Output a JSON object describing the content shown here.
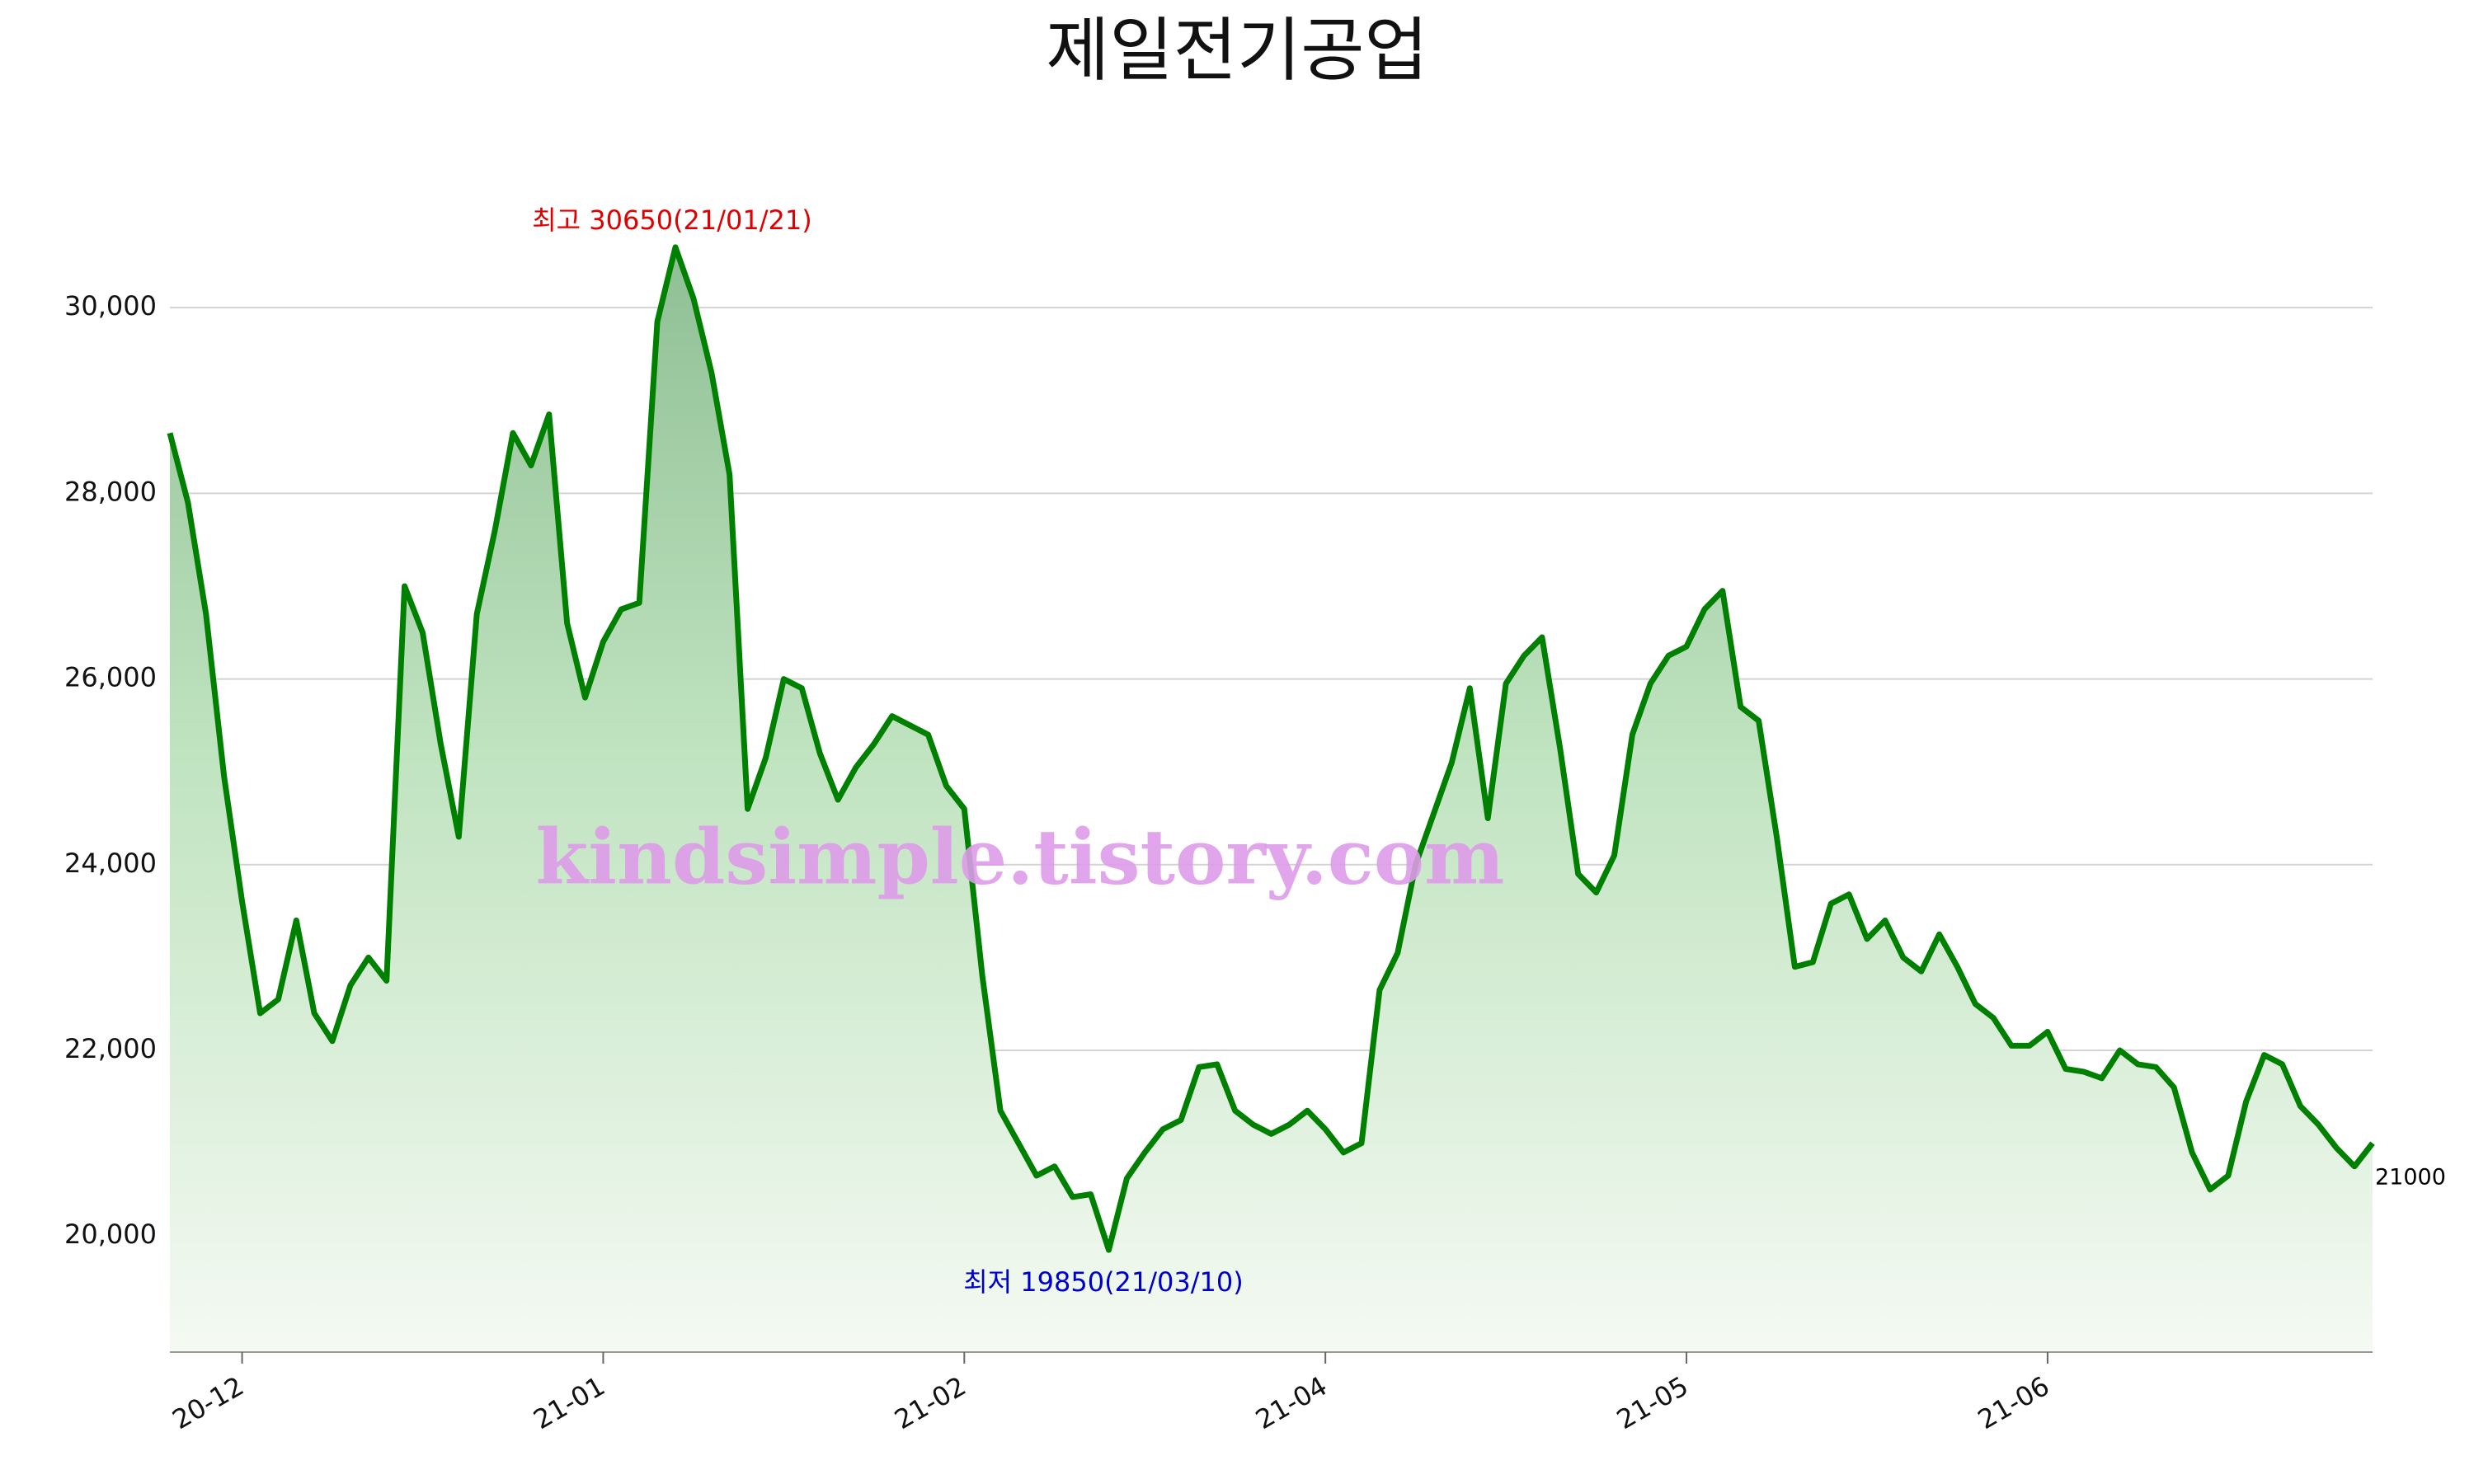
{
  "chart_data": {
    "type": "area-line",
    "title": "제일전기공업",
    "watermark": "kindsimple.tistory.com",
    "annotations": [
      {
        "text": "최고 30650(21/01/21)",
        "color": "#e00000"
      },
      {
        "text": "최저 19850(21/03/10)",
        "color": "#0000cc"
      },
      {
        "text": "21000",
        "color": "#000000"
      }
    ],
    "color": "#008000",
    "grid": true,
    "categories": [
      null,
      null,
      null,
      null,
      "20-12",
      null,
      null,
      null,
      null,
      null,
      null,
      null,
      null,
      null,
      null,
      null,
      null,
      null,
      null,
      null,
      null,
      null,
      null,
      null,
      "21-01",
      null,
      null,
      null,
      null,
      null,
      null,
      null,
      null,
      null,
      null,
      null,
      null,
      null,
      null,
      null,
      null,
      null,
      null,
      null,
      "21-02",
      null,
      null,
      null,
      null,
      null,
      null,
      null,
      null,
      null,
      null,
      null,
      null,
      null,
      null,
      null,
      null,
      null,
      null,
      null,
      "21-04",
      null,
      null,
      null,
      null,
      null,
      null,
      null,
      null,
      null,
      null,
      null,
      null,
      null,
      null,
      null,
      null,
      null,
      null,
      null,
      "21-05",
      null,
      null,
      null,
      null,
      null,
      null,
      null,
      null,
      null,
      null,
      null,
      null,
      null,
      null,
      null,
      null,
      null,
      null,
      null,
      "21-06",
      null,
      null,
      null,
      null,
      null,
      null,
      null,
      null,
      null,
      null,
      null,
      null,
      null,
      null,
      null,
      null,
      null,
      null
    ],
    "values": [
      28650,
      27900,
      26700,
      24950,
      23600,
      22400,
      22550,
      23400,
      22400,
      22100,
      22700,
      23000,
      22750,
      27000,
      26500,
      25300,
      24300,
      26700,
      27600,
      28650,
      28300,
      28850,
      26600,
      25800,
      26400,
      26750,
      26820,
      29850,
      30650,
      30100,
      29300,
      28200,
      24600,
      25150,
      26000,
      25900,
      25200,
      24700,
      25050,
      25300,
      25600,
      25500,
      25400,
      24850,
      24600,
      22800,
      21350,
      21000,
      20650,
      20750,
      20420,
      20450,
      19850,
      20620,
      20900,
      21150,
      21250,
      21820,
      21850,
      21350,
      21200,
      21100,
      21200,
      21350,
      21150,
      20900,
      21000,
      22650,
      23050,
      24000,
      24550,
      25100,
      25900,
      24500,
      25950,
      26250,
      26450,
      25250,
      23900,
      23700,
      24100,
      25400,
      25950,
      26250,
      26350,
      26750,
      26950,
      25700,
      25550,
      24300,
      22900,
      22950,
      23580,
      23680,
      23200,
      23400,
      23000,
      22850,
      23250,
      22900,
      22500,
      22350,
      22050,
      22050,
      22200,
      21800,
      21770,
      21700,
      22000,
      21850,
      21820,
      21600,
      20900,
      20500,
      20650,
      21450,
      21950,
      21850,
      21400,
      21200,
      20950,
      20750,
      21000
    ],
    "ylim": [
      18750,
      31200
    ],
    "yticks": [
      {
        "value": 20000,
        "label": "20,000"
      },
      {
        "value": 22000,
        "label": "22,000"
      },
      {
        "value": 24000,
        "label": "24,000"
      },
      {
        "value": 26000,
        "label": "26,000"
      },
      {
        "value": 28000,
        "label": "28,000"
      },
      {
        "value": 30000,
        "label": "30,000"
      }
    ]
  }
}
